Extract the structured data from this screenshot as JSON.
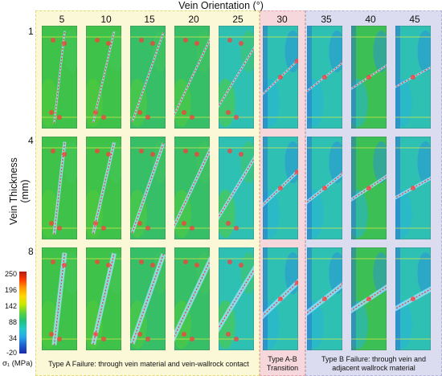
{
  "figure": {
    "title": "Vein Orientation (°)",
    "y_axis_label": "Vein Thickness (mm)",
    "orientations": [
      "5",
      "10",
      "15",
      "20",
      "25",
      "30",
      "35",
      "40",
      "45"
    ],
    "thicknesses": [
      "1",
      "4",
      "8"
    ],
    "vein_angles_deg": [
      5,
      10,
      15,
      20,
      25,
      30,
      35,
      40,
      45
    ],
    "colorbar": {
      "label": "σ₁ (MPa)",
      "ticks": [
        "250",
        "196",
        "142",
        "88",
        "34",
        "-20"
      ],
      "colors": [
        "#b01c18",
        "#ff3a00",
        "#ff9a00",
        "#ffd700",
        "#c8e800",
        "#5fd23c",
        "#22c27a",
        "#25c9c9",
        "#2aa6e8",
        "#1f5fcf",
        "#1a2aa8"
      ]
    },
    "regions": [
      {
        "id": "A",
        "caption": "Type A Failure: through vein material and vein-wallrock contact",
        "color": "#fbf8d8"
      },
      {
        "id": "AB",
        "caption_line1": "Type A-B",
        "caption_line2": "Transition",
        "color": "#f6d7db"
      },
      {
        "id": "B",
        "caption_line1": "Type B Failure: through vein and",
        "caption_line2": "adjacent wallrock material",
        "color": "#dcdcf0"
      }
    ]
  }
}
